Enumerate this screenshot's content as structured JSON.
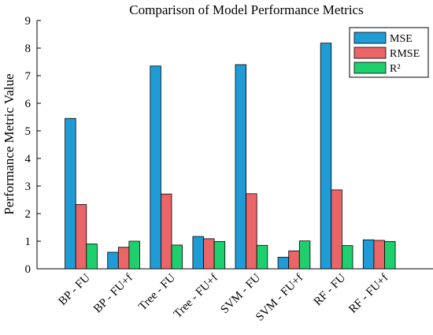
{
  "chart_data": {
    "type": "bar",
    "title": "Comparison of Model Performance Metrics",
    "xlabel": "",
    "ylabel": "Performance Metric Value",
    "ylim": [
      0,
      9
    ],
    "yticks": [
      0,
      1,
      2,
      3,
      4,
      5,
      6,
      7,
      8,
      9
    ],
    "grid": false,
    "legend_position": "top-right",
    "categories": [
      "BP - FU",
      "BP - FU+f",
      "Tree - FU",
      "Tree - FU+f",
      "SVM - FU",
      "SVM - FU+f",
      "RF - FU",
      "RF - FU+f"
    ],
    "series": [
      {
        "name": "MSE",
        "color": "#1f9bd6",
        "values": [
          5.45,
          0.6,
          7.35,
          1.17,
          7.4,
          0.42,
          8.18,
          1.05
        ]
      },
      {
        "name": "RMSE",
        "color": "#e96567",
        "values": [
          2.33,
          0.78,
          2.71,
          1.09,
          2.72,
          0.65,
          2.86,
          1.03
        ]
      },
      {
        "name": "R²",
        "color": "#1dd06d",
        "values": [
          0.9,
          1.0,
          0.86,
          0.99,
          0.85,
          1.01,
          0.84,
          0.99
        ]
      }
    ]
  }
}
